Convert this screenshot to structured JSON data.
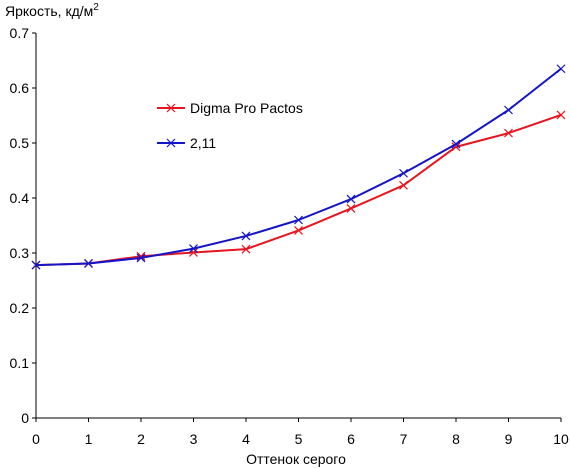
{
  "chart_data": {
    "type": "line",
    "ylabel": "Яркость, кд/м",
    "ylabel_superscript": "2",
    "xlabel": "Оттенок серого",
    "x": [
      0,
      1,
      2,
      3,
      4,
      5,
      6,
      7,
      8,
      9,
      10
    ],
    "x_tick_labels": [
      "0",
      "1",
      "2",
      "3",
      "4",
      "5",
      "6",
      "7",
      "8",
      "9",
      "10"
    ],
    "y_tick_labels": [
      "0",
      "0.1",
      "0.2",
      "0.3",
      "0.4",
      "0.5",
      "0.6",
      "0.7"
    ],
    "xlim": [
      0,
      10
    ],
    "ylim": [
      0,
      0.7
    ],
    "grid": false,
    "legend_position": "upper-left-inside",
    "series": [
      {
        "name": "Digma Pro Pactos",
        "color": "#e8141e",
        "marker": "x",
        "values": [
          0.278,
          0.281,
          0.294,
          0.301,
          0.307,
          0.341,
          0.381,
          0.423,
          0.493,
          0.518,
          0.551
        ]
      },
      {
        "name": "2,11",
        "color": "#1414c8",
        "marker": "x",
        "values": [
          0.278,
          0.281,
          0.291,
          0.308,
          0.331,
          0.36,
          0.398,
          0.445,
          0.498,
          0.56,
          0.635
        ]
      }
    ]
  }
}
